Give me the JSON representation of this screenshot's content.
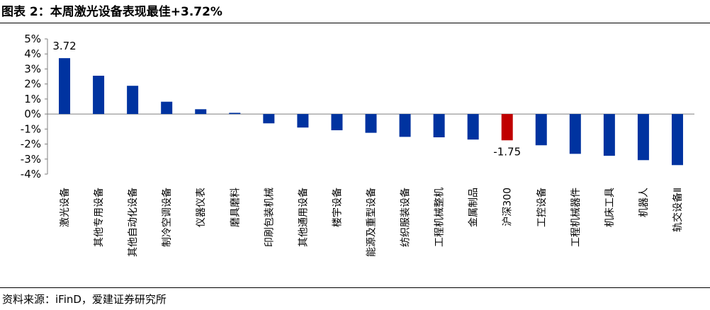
{
  "title": "图表 2：本周激光设备表现最佳+3.72%",
  "source": "资料来源：iFinD，爱建证券研究所",
  "colors": {
    "default_bar": "#0033a0",
    "highlight_bar": "#c00000"
  },
  "chart_data": {
    "type": "bar",
    "title": "",
    "xlabel": "",
    "ylabel": "",
    "ylim": [
      -4,
      5
    ],
    "yticks": [
      "5%",
      "4%",
      "3%",
      "2%",
      "1%",
      "0%",
      "-1%",
      "-2%",
      "-3%",
      "-4%"
    ],
    "categories": [
      "激光设备",
      "其他专用设备",
      "其他自动化设备",
      "制冷空调设备",
      "仪器仪表",
      "磨具磨料",
      "印刷包装机械",
      "其他通用设备",
      "楼宇设备",
      "能源及重型设备",
      "纺织服装设备",
      "工程机械整机",
      "金属制品",
      "沪深300",
      "工控设备",
      "工程机械器件",
      "机床工具",
      "机器人",
      "轨交设备Ⅱ"
    ],
    "values": [
      3.72,
      2.55,
      1.88,
      0.82,
      0.32,
      0.08,
      -0.62,
      -0.9,
      -1.08,
      -1.25,
      -1.52,
      -1.55,
      -1.7,
      -1.75,
      -2.08,
      -2.65,
      -2.78,
      -3.07,
      -3.4
    ],
    "highlight_category": "沪深300",
    "data_labels": [
      {
        "category": "激光设备",
        "text": "3.72"
      },
      {
        "category": "沪深300",
        "text": "-1.75"
      }
    ],
    "grid": false,
    "legend": "none"
  }
}
